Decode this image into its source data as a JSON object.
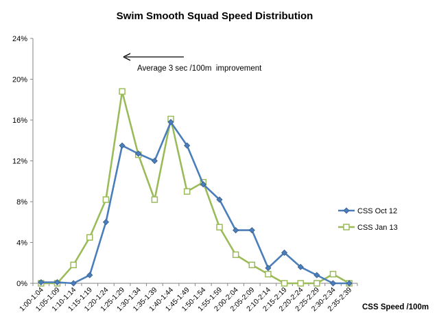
{
  "chart_data": {
    "type": "line",
    "title": "Swim Smooth Squad Speed Distribution",
    "xlabel": "CSS Speed /100m",
    "ylabel": "",
    "ylim": [
      0,
      24
    ],
    "yticks": [
      0,
      4,
      8,
      12,
      16,
      20,
      24
    ],
    "ytick_labels": [
      "0%",
      "4%",
      "8%",
      "12%",
      "16%",
      "20%",
      "24%"
    ],
    "categories": [
      "1:00-1:04",
      "1:05-1:09",
      "1:10-1:14",
      "1:15-1:19",
      "1:20-1:24",
      "1:25-1:29",
      "1:30-1:34",
      "1:35-1:39",
      "1:40-1:44",
      "1:45-1:49",
      "1:50-1:54",
      "1:55-1:59",
      "2:00-2:04",
      "2:05-2:09",
      "2:10-2:14",
      "2:15-2:19",
      "2:20-2:24",
      "2:25-2:29",
      "2:30-2:34",
      "2:35-2:39"
    ],
    "series": [
      {
        "name": "CSS Oct 12",
        "color": "#4a7ebb",
        "marker": "diamond",
        "values": [
          0.1,
          0.1,
          0.0,
          0.8,
          6.0,
          13.5,
          12.7,
          12.0,
          15.8,
          13.5,
          9.7,
          8.2,
          5.2,
          5.2,
          1.5,
          3.0,
          1.6,
          0.8,
          0.0,
          0.0
        ]
      },
      {
        "name": "CSS Jan 13",
        "color": "#9bbb59",
        "marker": "square",
        "values": [
          0.0,
          0.0,
          1.8,
          4.5,
          8.2,
          18.8,
          12.6,
          8.2,
          16.1,
          9.0,
          9.9,
          5.5,
          2.8,
          1.8,
          0.9,
          0.0,
          0.0,
          0.0,
          0.9,
          0.0
        ]
      }
    ],
    "annotation": "Average 3 sec /100m  improvement",
    "legend_position": "right",
    "grid": false
  }
}
